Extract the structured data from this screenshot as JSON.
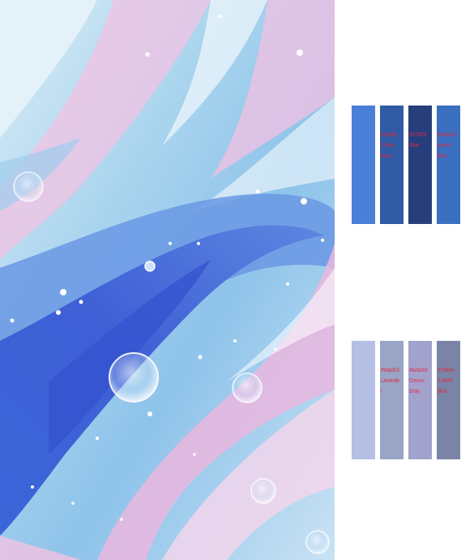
{
  "artwork": {
    "description_icon": "fluid-acrylic-marble-painting"
  },
  "palette": {
    "rows": [
      {
        "swatches": [
          {
            "color": "#4a7fd8",
            "label": ""
          },
          {
            "color": "#2f5aa4",
            "label": "#2e59a3 Blue Navy"
          },
          {
            "color": "#263f7c",
            "label": "#273f7b Blue"
          },
          {
            "color": "#3a6fc0",
            "label": "#3a6ec0 Azure Blue"
          }
        ]
      },
      {
        "swatches": [
          {
            "color": "#b5bfe4",
            "label": ""
          },
          {
            "color": "#9aa4c4",
            "label": "#9aa3c5 Lavender"
          },
          {
            "color": "#a3a2cd",
            "label": "#a2a2cb Crocus Gray"
          },
          {
            "color": "#7a84a6",
            "label": "#7b84a5 Steel Blue"
          }
        ]
      }
    ]
  }
}
